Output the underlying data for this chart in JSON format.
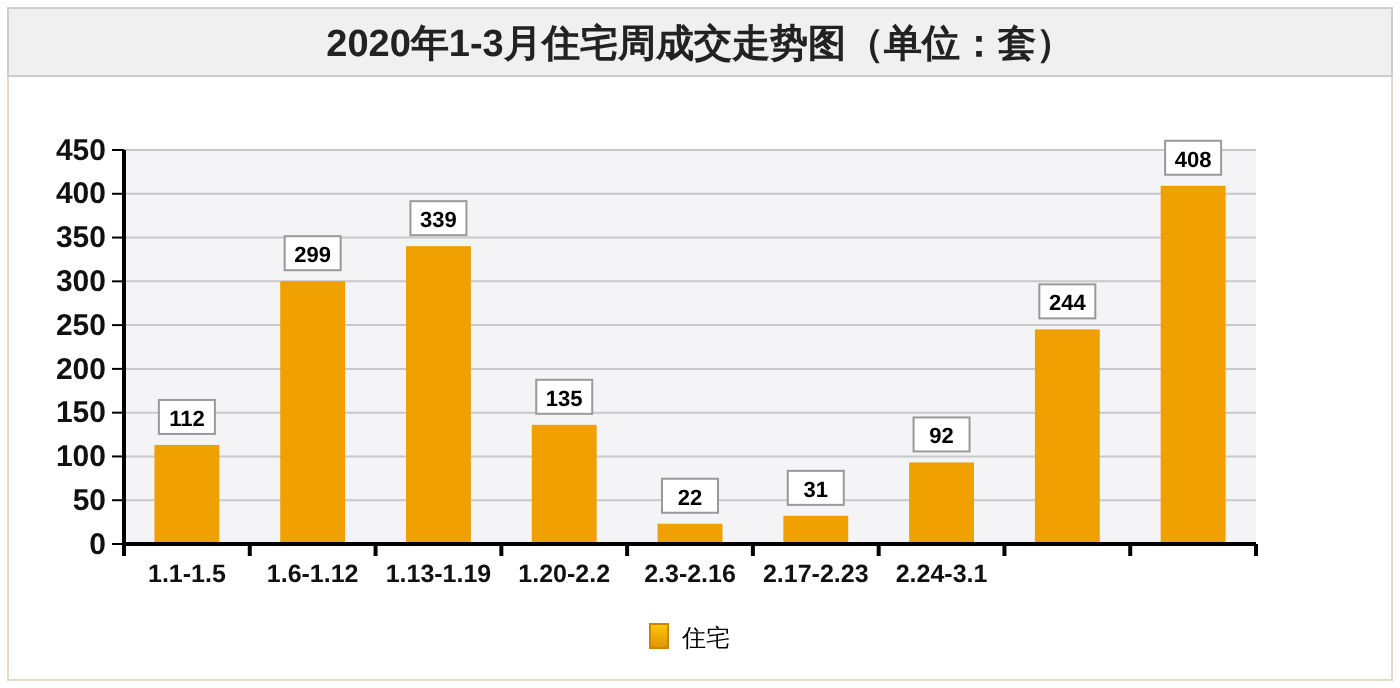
{
  "chart_data": {
    "type": "bar",
    "title": "2020年1-3月住宅周成交走势图（单位：套）",
    "categories": [
      "1.1-1.5",
      "1.6-1.12",
      "1.13-1.19",
      "1.20-2.2",
      "2.3-2.16",
      "2.17-2.23",
      "2.24-3.1",
      null,
      null
    ],
    "series": [
      {
        "name": "住宅",
        "color": "#f0a000",
        "values": [
          112,
          299,
          339,
          135,
          22,
          31,
          92,
          244,
          408
        ]
      }
    ],
    "ylim": [
      0,
      450
    ],
    "yticks": [
      0,
      50,
      100,
      150,
      200,
      250,
      300,
      350,
      400,
      450
    ],
    "grid": "y",
    "legend": "bottom",
    "data_labels": true
  }
}
